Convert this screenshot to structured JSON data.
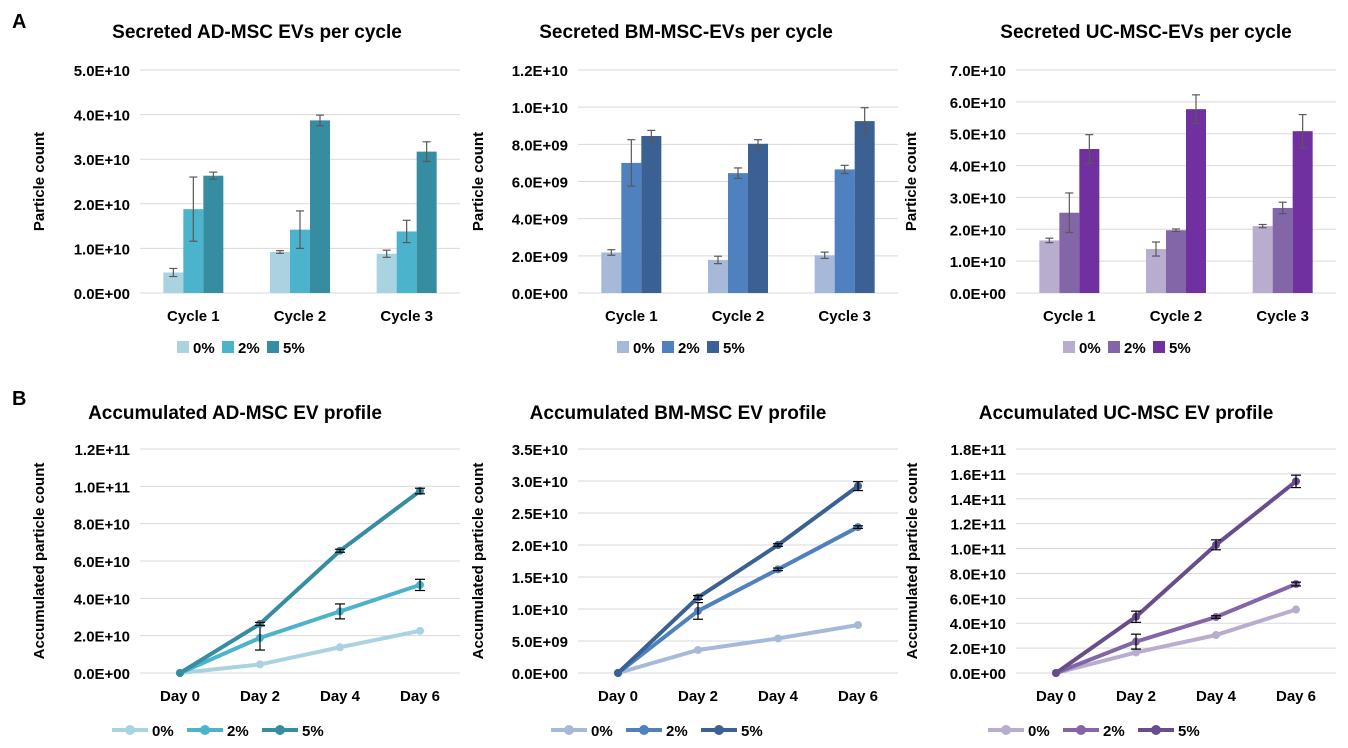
{
  "panel_labels": [
    "A",
    "B"
  ],
  "chart_data": [
    {
      "type": "bar",
      "title": "Secreted AD-MSC EVs per cycle",
      "ylabel": "Particle count",
      "ylim": [
        0,
        50000000000
      ],
      "ytick_labels": [
        "0.0E+00",
        "1.0E+10",
        "2.0E+10",
        "3.0E+10",
        "4.0E+10",
        "5.0E+10"
      ],
      "categories": [
        "Cycle 1",
        "Cycle 2",
        "Cycle 3"
      ],
      "series": [
        {
          "name": "0%",
          "color": "#a9d3e0",
          "values": [
            4600000000.0,
            9200000000.0,
            8800000000.0
          ],
          "errors": [
            900000000.0,
            300000000.0,
            800000000.0
          ]
        },
        {
          "name": "2%",
          "color": "#4bb3cc",
          "values": [
            18800000000.0,
            14200000000.0,
            13800000000.0
          ],
          "errors": [
            7200000000.0,
            4200000000.0,
            2500000000.0
          ]
        },
        {
          "name": "5%",
          "color": "#368ca0",
          "values": [
            26300000000.0,
            38700000000.0,
            31700000000.0
          ],
          "errors": [
            800000000.0,
            1200000000.0,
            2200000000.0
          ]
        }
      ],
      "grid": true,
      "legend_position": "bottom"
    },
    {
      "type": "bar",
      "title": "Secreted BM-MSC-EVs per cycle",
      "ylabel": "Particle count",
      "ylim": [
        0,
        12000000000
      ],
      "ytick_labels": [
        "0.0E+00",
        "2.0E+09",
        "4.0E+09",
        "6.0E+09",
        "8.0E+09",
        "1.0E+10",
        "1.2E+10"
      ],
      "categories": [
        "Cycle 1",
        "Cycle 2",
        "Cycle 3"
      ],
      "series": [
        {
          "name": "0%",
          "color": "#a7b9d9",
          "values": [
            2180000000.0,
            1780000000.0,
            2030000000.0
          ],
          "errors": [
            150000000.0,
            200000000.0,
            170000000.0
          ]
        },
        {
          "name": "2%",
          "color": "#4e81bd",
          "values": [
            7000000000.0,
            6450000000.0,
            6650000000.0
          ],
          "errors": [
            1250000000.0,
            280000000.0,
            220000000.0
          ]
        },
        {
          "name": "5%",
          "color": "#3a6094",
          "values": [
            8450000000.0,
            8030000000.0,
            9250000000.0
          ],
          "errors": [
            300000000.0,
            220000000.0,
            720000000.0
          ]
        }
      ],
      "grid": true,
      "legend_position": "bottom"
    },
    {
      "type": "bar",
      "title": "Secreted UC-MSC-EVs per cycle",
      "ylabel": "Particle count",
      "ylim": [
        0,
        70000000000
      ],
      "ytick_labels": [
        "0.0E+00",
        "1.0E+10",
        "2.0E+10",
        "3.0E+10",
        "4.0E+10",
        "5.0E+10",
        "6.0E+10",
        "7.0E+10"
      ],
      "categories": [
        "Cycle 1",
        "Cycle 2",
        "Cycle 3"
      ],
      "series": [
        {
          "name": "0%",
          "color": "#b9adcf",
          "values": [
            16500000000.0,
            13800000000.0,
            21000000000.0
          ],
          "errors": [
            700000000.0,
            2200000000.0,
            500000000.0
          ],
          "_": 0
        },
        {
          "name": "2%",
          "color": "#8266a8",
          "values": [
            25200000000.0,
            19700000000.0,
            26700000000.0
          ],
          "errors": [
            6200000000.0,
            400000000.0,
            1800000000.0
          ]
        },
        {
          "name": "5%",
          "color": "#7030a0",
          "values": [
            45200000000.0,
            57700000000.0,
            50800000000.0
          ],
          "errors": [
            4500000000.0,
            4500000000.0,
            5200000000.0
          ]
        }
      ],
      "grid": true,
      "legend_position": "bottom"
    },
    {
      "type": "line",
      "title": "Accumulated AD-MSC EV profile",
      "ylabel": "Accumulated particle count",
      "ylim": [
        0,
        120000000000
      ],
      "ytick_labels": [
        "0.0E+00",
        "2.0E+10",
        "4.0E+10",
        "6.0E+10",
        "8.0E+10",
        "1.0E+11",
        "1.2E+11"
      ],
      "categories": [
        "Day 0",
        "Day 2",
        "Day 4",
        "Day 6"
      ],
      "series": [
        {
          "name": "0%",
          "color": "#a9d3e0",
          "values": [
            0,
            4600000000.0,
            13800000000.0,
            22600000000.0
          ],
          "errors": [
            0,
            0,
            0,
            0
          ]
        },
        {
          "name": "2%",
          "color": "#4bb3cc",
          "values": [
            0,
            18800000000.0,
            33000000000.0,
            47200000000.0
          ],
          "errors": [
            0,
            6500000000.0,
            4000000000.0,
            3000000000.0
          ]
        },
        {
          "name": "5%",
          "color": "#368ca0",
          "values": [
            0,
            26300000000.0,
            65500000000.0,
            97500000000.0
          ],
          "errors": [
            0,
            800000000.0,
            800000000.0,
            1500000000.0
          ]
        }
      ],
      "grid": true,
      "legend_position": "bottom"
    },
    {
      "type": "line",
      "title": "Accumulated BM-MSC EV profile",
      "ylabel": "Accumulated particle count",
      "ylim": [
        0,
        35000000000
      ],
      "ytick_labels": [
        "0.0E+00",
        "5.0E+09",
        "1.0E+10",
        "1.5E+10",
        "2.0E+10",
        "2.5E+10",
        "3.0E+10",
        "3.5E+10"
      ],
      "categories": [
        "Day 0",
        "Day 2",
        "Day 4",
        "Day 6"
      ],
      "series": [
        {
          "name": "0%",
          "color": "#a7b9d9",
          "values": [
            0,
            3600000000.0,
            5400000000.0,
            7500000000.0
          ],
          "errors": [
            0,
            0,
            0,
            0
          ]
        },
        {
          "name": "2%",
          "color": "#4e81bd",
          "values": [
            0,
            9700000000.0,
            16200000000.0,
            22800000000.0
          ],
          "errors": [
            0,
            1300000000.0,
            200000000.0,
            200000000.0
          ]
        },
        {
          "name": "5%",
          "color": "#3a6094",
          "values": [
            0,
            11800000000.0,
            20000000000.0,
            29200000000.0
          ],
          "errors": [
            0,
            300000000.0,
            200000000.0,
            700000000.0
          ]
        }
      ],
      "grid": true,
      "legend_position": "bottom"
    },
    {
      "type": "line",
      "title": "Accumulated UC-MSC EV profile",
      "ylabel": "Accumulated particle count",
      "ylim": [
        0,
        180000000000
      ],
      "ytick_labels": [
        "0.0E+00",
        "2.0E+10",
        "4.0E+10",
        "6.0E+10",
        "8.0E+10",
        "1.0E+11",
        "1.2E+11",
        "1.4E+11",
        "1.6E+11",
        "1.8E+11"
      ],
      "categories": [
        "Day 0",
        "Day 2",
        "Day 4",
        "Day 6"
      ],
      "series": [
        {
          "name": "0%",
          "color": "#b9adcf",
          "values": [
            0,
            16500000000.0,
            30500000000.0,
            51000000000.0
          ],
          "errors": [
            0,
            0,
            0,
            0
          ]
        },
        {
          "name": "2%",
          "color": "#8266a8",
          "values": [
            0,
            25200000000.0,
            45000000000.0,
            71500000000.0
          ],
          "errors": [
            0,
            6000000000.0,
            1000000000.0,
            1500000000.0
          ]
        },
        {
          "name": "5%",
          "color": "#684d8c",
          "values": [
            0,
            45200000000.0,
            103000000000.0,
            154000000000.0
          ],
          "errors": [
            0,
            4500000000.0,
            4000000000.0,
            5000000000.0
          ]
        }
      ],
      "grid": true,
      "legend_position": "bottom"
    }
  ]
}
